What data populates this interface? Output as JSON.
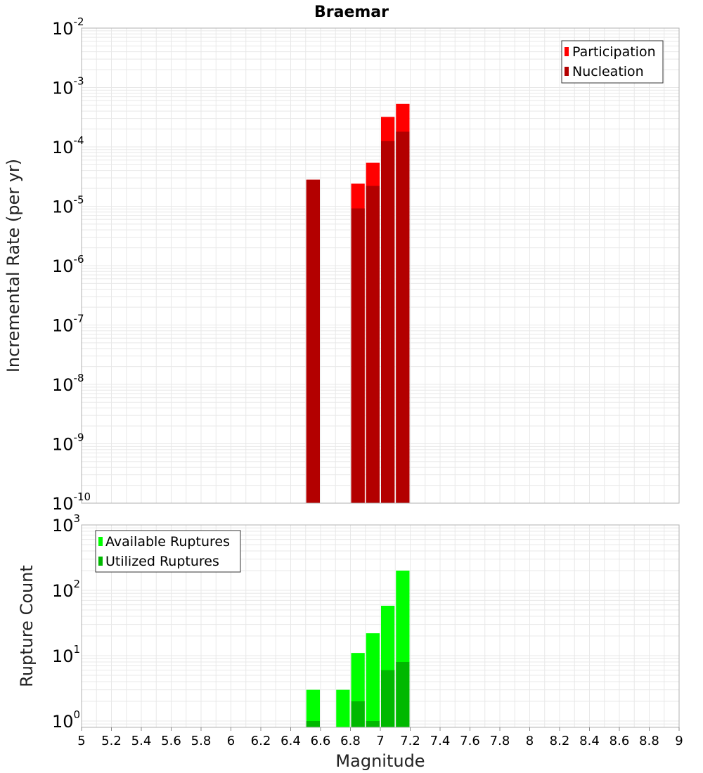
{
  "chart_data": [
    {
      "type": "bar",
      "title": "Braemar",
      "xlabel": "Magnitude",
      "ylabel": "Incremental Rate (per yr)",
      "yscale": "log",
      "ylim": [
        1e-10,
        0.01
      ],
      "xlim": [
        5,
        9
      ],
      "bin_width": 0.1,
      "grid": true,
      "legend_position": "top-right",
      "bar_centers": [
        6.55,
        6.85,
        6.95,
        7.05,
        7.15
      ],
      "series": [
        {
          "name": "Participation",
          "color": "#ff0000",
          "values": [
            2.8e-05,
            2.4e-05,
            5.4e-05,
            0.00032,
            0.00053
          ]
        },
        {
          "name": "Nucleation",
          "color": "#b30000",
          "values": [
            2.8e-05,
            9.2e-06,
            2.2e-05,
            0.000125,
            0.00018
          ]
        }
      ]
    },
    {
      "type": "bar",
      "title": "",
      "xlabel": "Magnitude",
      "ylabel": "Rupture Count",
      "yscale": "log",
      "ylim": [
        0.8,
        1000
      ],
      "xlim": [
        5,
        9
      ],
      "bin_width": 0.1,
      "grid": true,
      "legend_position": "top-left",
      "bar_centers": [
        6.55,
        6.75,
        6.85,
        6.95,
        7.05,
        7.15
      ],
      "series": [
        {
          "name": "Available Ruptures",
          "color": "#00ff00",
          "values": [
            3,
            3,
            11,
            22,
            58,
            200
          ]
        },
        {
          "name": "Utilized Ruptures",
          "color": "#00b800",
          "values": [
            1,
            0,
            2,
            1,
            6,
            8
          ]
        }
      ]
    }
  ],
  "axes": {
    "x_ticks": [
      "5",
      "5.2",
      "5.4",
      "5.6",
      "5.8",
      "6",
      "6.2",
      "6.4",
      "6.6",
      "6.8",
      "7",
      "7.2",
      "7.4",
      "7.6",
      "7.8",
      "8",
      "8.2",
      "8.4",
      "8.6",
      "8.8",
      "9"
    ],
    "top_y_ticks": [
      {
        "base": "10",
        "exp": "-2"
      },
      {
        "base": "10",
        "exp": "-3"
      },
      {
        "base": "10",
        "exp": "-4"
      },
      {
        "base": "10",
        "exp": "-5"
      },
      {
        "base": "10",
        "exp": "-6"
      },
      {
        "base": "10",
        "exp": "-7"
      },
      {
        "base": "10",
        "exp": "-8"
      },
      {
        "base": "10",
        "exp": "-9"
      },
      {
        "base": "10",
        "exp": "-10"
      }
    ],
    "bottom_y_ticks": [
      {
        "base": "10",
        "exp": "3"
      },
      {
        "base": "10",
        "exp": "2"
      },
      {
        "base": "10",
        "exp": "1"
      },
      {
        "base": "10",
        "exp": "0"
      }
    ]
  },
  "colors": {
    "grid": "#e8e8e8",
    "frame": "#b0b0b0"
  }
}
